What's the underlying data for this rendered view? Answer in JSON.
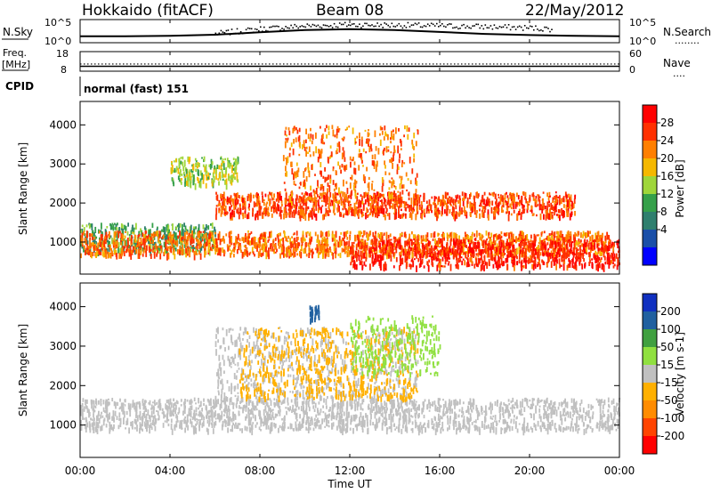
{
  "header": {
    "station": "Hokkaido (fitACF)",
    "beam": "Beam 08",
    "date": "22/May/2012"
  },
  "top_panel": {
    "left_label": "N.Sky",
    "left_ticks": [
      "10^5",
      "10^0"
    ],
    "right_ticks": [
      "10^5",
      "10^0"
    ],
    "right_label": "N.Search",
    "right_marker": "........"
  },
  "freq_panel": {
    "left_label_1": "Freq.",
    "left_label_2": "[MHz]",
    "left_ticks": [
      "18",
      "8"
    ],
    "right_ticks": [
      "60",
      "0"
    ],
    "right_label": "Nave",
    "right_marker": "....",
    "cpid_label": "CPID",
    "cpid_text": "normal (fast) 151"
  },
  "power_panel": {
    "ylabel": "Slant Range [km]",
    "yticks": [
      "4000",
      "3000",
      "2000",
      "1000"
    ],
    "colorbar_label": "Power [dB]",
    "colorbar_ticks": [
      "28",
      "24",
      "20",
      "16",
      "12",
      "8",
      "4"
    ]
  },
  "velocity_panel": {
    "ylabel": "Slant Range [km]",
    "yticks": [
      "4000",
      "3000",
      "2000",
      "1000"
    ],
    "colorbar_label": "Velocity [m s-1]",
    "colorbar_ticks": [
      "200",
      "100",
      "50",
      "15",
      "-15",
      "-50",
      "-100",
      "-200"
    ]
  },
  "x_axis": {
    "ticks": [
      "00:00",
      "04:00",
      "08:00",
      "12:00",
      "16:00",
      "20:00",
      "00:00"
    ],
    "label": "Time UT"
  },
  "colors": {
    "power_scale": [
      "#0000ff",
      "#1a4fa8",
      "#2f7f6e",
      "#35a04a",
      "#9fd63a",
      "#f5b800",
      "#ff7f00",
      "#ff3000",
      "#ff0000"
    ],
    "velocity_scale": [
      "#ff0000",
      "#ff4400",
      "#ff8c00",
      "#ffb000",
      "#c0c0c0",
      "#90e040",
      "#40a040",
      "#2060a0",
      "#1030c0"
    ]
  },
  "chart_data": [
    {
      "type": "line",
      "title": "",
      "xlabel": "",
      "ylabel": "N.Sky / N.Search",
      "xlim": [
        0,
        24
      ],
      "series": [
        {
          "name": "N.Sky",
          "x": [
            0,
            2,
            4,
            6,
            8,
            10,
            12,
            14,
            16,
            18,
            20,
            22,
            24
          ],
          "values": [
            1.2,
            1.2,
            1.3,
            1.6,
            2.2,
            2.8,
            3.0,
            2.8,
            2.3,
            1.8,
            1.5,
            1.3,
            1.2
          ]
        },
        {
          "name": "N.Search",
          "x": [
            6,
            8,
            10,
            12,
            14,
            16,
            18,
            20,
            21
          ],
          "values": [
            2.0,
            3.2,
            4.0,
            4.3,
            4.2,
            4.0,
            3.8,
            3.5,
            3.2
          ]
        }
      ]
    },
    {
      "type": "line",
      "title": "",
      "xlabel": "",
      "ylabel": "Freq. [MHz] / Nave",
      "xlim": [
        0,
        24
      ],
      "series": [
        {
          "name": "Freq.",
          "x": [
            0,
            24
          ],
          "values": [
            10.5,
            10.5
          ]
        },
        {
          "name": "Nave",
          "x": [
            0,
            24
          ],
          "values": [
            22,
            22
          ]
        }
      ]
    },
    {
      "type": "heatmap",
      "title": "Power",
      "xlabel": "Time UT",
      "ylabel": "Slant Range [km]",
      "xlim": [
        0,
        24
      ],
      "ylim": [
        180,
        4600
      ],
      "color_ticks": [
        4,
        8,
        12,
        16,
        20,
        24,
        28
      ],
      "color_label": "Power [dB]",
      "regions": [
        {
          "t": [
            0,
            6
          ],
          "r": [
            800,
            1500
          ],
          "level": 12
        },
        {
          "t": [
            0,
            23.5
          ],
          "r": [
            700,
            1300
          ],
          "level": 24
        },
        {
          "t": [
            6,
            22
          ],
          "r": [
            1700,
            2300
          ],
          "level": 26
        },
        {
          "t": [
            12,
            24
          ],
          "r": [
            400,
            1100
          ],
          "level": 28
        },
        {
          "t": [
            9,
            15
          ],
          "r": [
            2000,
            4000
          ],
          "level": 24
        },
        {
          "t": [
            4,
            7
          ],
          "r": [
            2500,
            3200
          ],
          "level": 16
        }
      ]
    },
    {
      "type": "heatmap",
      "title": "Velocity",
      "xlabel": "Time UT",
      "ylabel": "Slant Range [km]",
      "xlim": [
        0,
        24
      ],
      "ylim": [
        180,
        4600
      ],
      "color_ticks": [
        -200,
        -100,
        -50,
        -15,
        15,
        50,
        100,
        200
      ],
      "color_label": "Velocity [m s-1]",
      "regions": [
        {
          "t": [
            0,
            24
          ],
          "r": [
            900,
            1700
          ],
          "level": 0
        },
        {
          "t": [
            6,
            15
          ],
          "r": [
            1700,
            3500
          ],
          "level": 0
        },
        {
          "t": [
            7,
            15
          ],
          "r": [
            1700,
            3500
          ],
          "level": -40
        },
        {
          "t": [
            12,
            16
          ],
          "r": [
            2300,
            3800
          ],
          "level": 40
        },
        {
          "t": [
            10.2,
            10.6
          ],
          "r": [
            3700,
            4100
          ],
          "level": 150
        }
      ]
    }
  ]
}
